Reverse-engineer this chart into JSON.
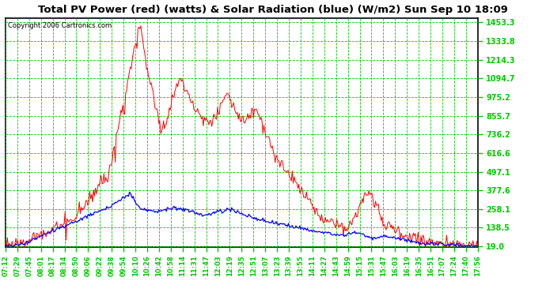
{
  "title": "Total PV Power (red) (watts) & Solar Radiation (blue) (W/m2) Sun Sep 10 18:09",
  "copyright": "Copyright 2006 Cartronics.com",
  "bg_color": "#ffffff",
  "plot_bg_color": "#ffffff",
  "grid_color": "#00cc00",
  "title_color": "#000000",
  "tick_label_color": "#000000",
  "copyright_color": "#000000",
  "border_color": "#000000",
  "yticks": [
    19.0,
    138.5,
    258.1,
    377.6,
    497.1,
    616.6,
    736.2,
    855.7,
    975.2,
    1094.7,
    1214.3,
    1333.8,
    1453.3
  ],
  "ymin": 19.0,
  "ymax": 1453.3,
  "xtick_labels": [
    "07:12",
    "07:29",
    "07:45",
    "08:01",
    "08:17",
    "08:34",
    "08:50",
    "09:06",
    "09:22",
    "09:38",
    "09:54",
    "10:10",
    "10:26",
    "10:42",
    "10:58",
    "11:14",
    "11:31",
    "11:47",
    "12:03",
    "12:19",
    "12:35",
    "12:51",
    "13:07",
    "13:23",
    "13:39",
    "13:55",
    "14:11",
    "14:27",
    "14:43",
    "14:59",
    "15:15",
    "15:31",
    "15:47",
    "16:03",
    "16:19",
    "16:35",
    "16:51",
    "17:07",
    "17:24",
    "17:40",
    "17:56"
  ],
  "red_line_color": "#ff0000",
  "blue_line_color": "#0000ff"
}
